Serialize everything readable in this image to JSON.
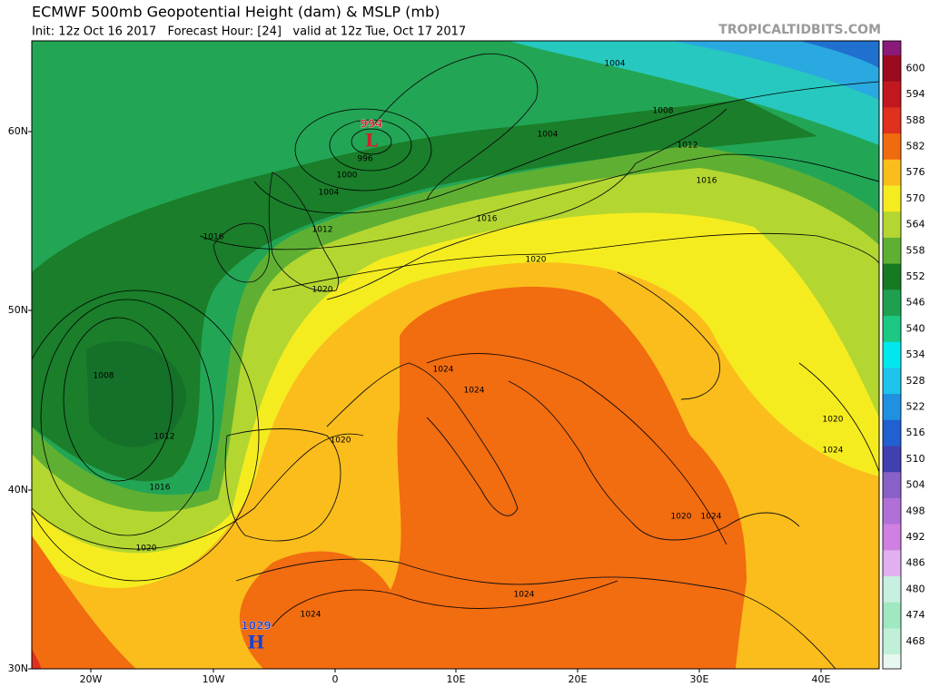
{
  "header": {
    "title": "ECMWF 500mb Geopotential Height (dam) & MSLP (mb)",
    "subtitle": "Init: 12z Oct 16 2017   Forecast Hour: [24]   valid at 12z Tue, Oct 17 2017",
    "source": "TROPICALTIDBITS.COM"
  },
  "map": {
    "lat_labels": [
      "60N",
      "50N",
      "40N",
      "30N"
    ],
    "lon_labels": [
      "20W",
      "10W",
      "0",
      "10E",
      "20E",
      "30E",
      "40E"
    ],
    "pressure_centers": [
      {
        "kind": "L",
        "value": "994"
      },
      {
        "kind": "H",
        "value": "1029"
      }
    ],
    "isobar_labels": [
      "1004",
      "1008",
      "1004",
      "1012",
      "1016",
      "996",
      "1000",
      "1004",
      "1012",
      "1016",
      "1016",
      "1020",
      "1020",
      "1008",
      "1012",
      "1016",
      "1020",
      "1020",
      "1024",
      "1024",
      "1024",
      "1024",
      "1020",
      "1024",
      "1020",
      "1024"
    ]
  },
  "colorbar": {
    "top_color": "#8a1a7a",
    "labels": [
      "600",
      "594",
      "588",
      "582",
      "576",
      "570",
      "564",
      "558",
      "552",
      "546",
      "540",
      "534",
      "528",
      "522",
      "516",
      "510",
      "504",
      "498",
      "492",
      "486",
      "480",
      "474",
      "468"
    ],
    "colors": [
      "#9b0a1e",
      "#c1181f",
      "#e0301e",
      "#f06a10",
      "#fbbd1c",
      "#f5ec20",
      "#b4d630",
      "#5fb032",
      "#167a23",
      "#1ea050",
      "#1cc882",
      "#00e8ee",
      "#1ec3ec",
      "#2090e0",
      "#2060d0",
      "#4040b0",
      "#8860c8",
      "#b070d8",
      "#d080e0",
      "#e0b0f0",
      "#c8f0e0",
      "#a0e8c0",
      "#c0f0d8"
    ]
  }
}
